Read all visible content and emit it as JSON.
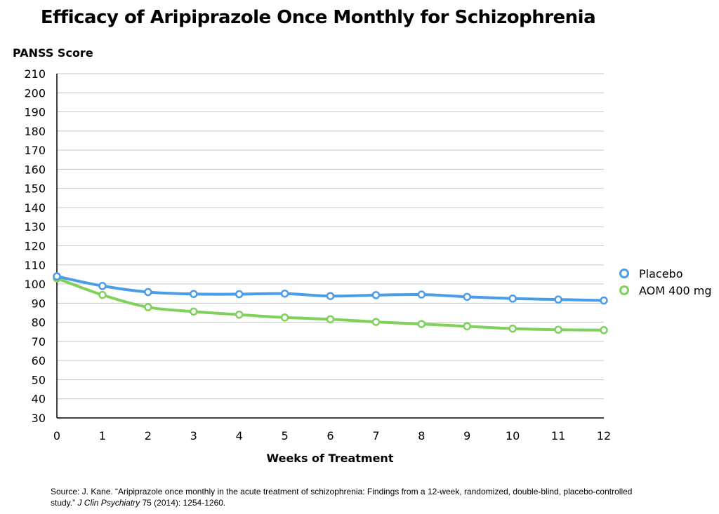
{
  "chart_data": {
    "type": "line",
    "title": "Efficacy of Aripiprazole Once Monthly for Schizophrenia",
    "ylabel": "PANSS Score",
    "xlabel": "Weeks of Treatment",
    "x": [
      0,
      1,
      2,
      3,
      4,
      5,
      6,
      7,
      8,
      9,
      10,
      11,
      12
    ],
    "xlim": [
      0,
      12
    ],
    "ylim": [
      30,
      210
    ],
    "yticks": [
      30,
      40,
      50,
      60,
      70,
      80,
      90,
      100,
      110,
      120,
      130,
      140,
      150,
      160,
      170,
      180,
      190,
      200,
      210
    ],
    "grid": true,
    "legend_position": "right",
    "series": [
      {
        "name": "Placebo",
        "color": "#4a9be8",
        "values": [
          104,
          99,
          95.8,
          94.8,
          94.7,
          95,
          93.7,
          94.2,
          94.5,
          93.3,
          92.4,
          91.9,
          91.4
        ]
      },
      {
        "name": "AOM 400 mg",
        "color": "#7fd15a",
        "values": [
          103,
          94.3,
          87.9,
          85.6,
          84,
          82.5,
          81.6,
          80.2,
          79.1,
          77.9,
          76.7,
          76.1,
          75.9
        ]
      }
    ]
  },
  "source": {
    "text": "Source: J. Kane.  “Aripiprazole once monthly in the acute treatment of schizophrenia: Findings from a 12-week, randomized, double-blind, placebo-controlled study.”",
    "journal": "J Clin Psychiatry",
    "citation": "75 (2014): 1254-1260."
  }
}
